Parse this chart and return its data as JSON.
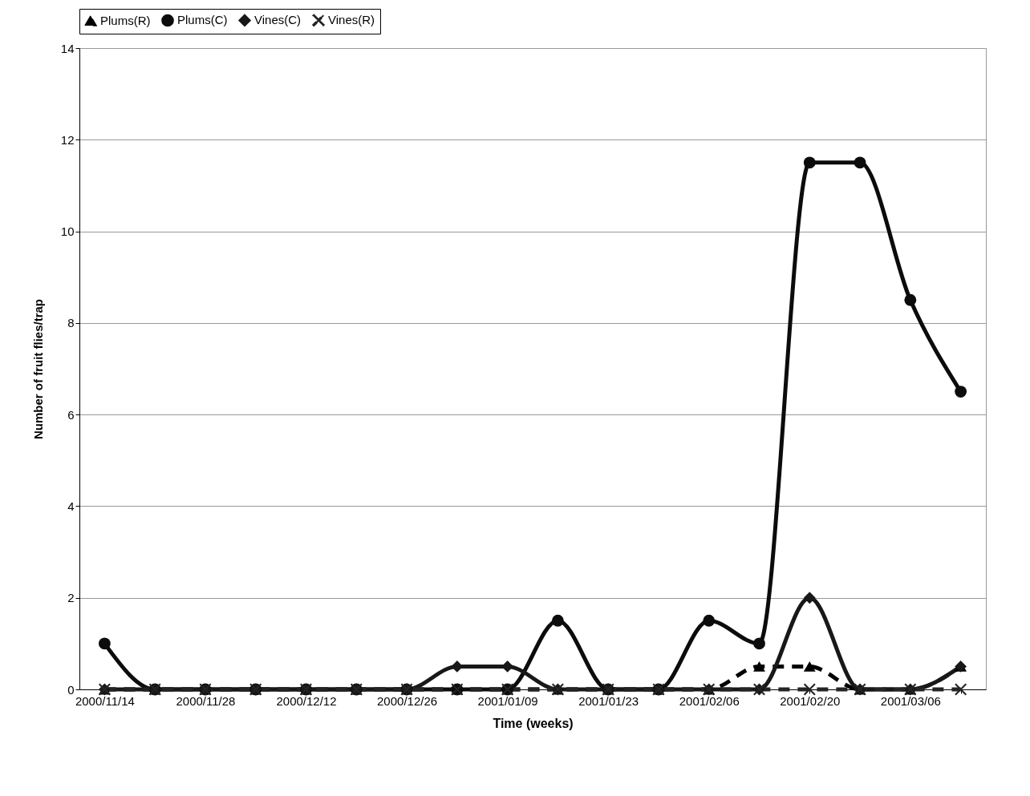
{
  "chart_data": {
    "type": "line",
    "xlabel": "Time (weeks)",
    "ylabel": "Number of fruit flies/trap",
    "categories": [
      "2000/11/14",
      null,
      "2000/11/28",
      null,
      "2000/12/12",
      null,
      "2000/12/26",
      null,
      "2001/01/09",
      null,
      "2001/01/23",
      null,
      "2001/02/06",
      null,
      "2001/02/20",
      null,
      "2001/03/06",
      null
    ],
    "series": [
      {
        "name": "Plums(R)",
        "color": "#000000",
        "marker": "triangle",
        "line_style": "dashed",
        "values": [
          0,
          0,
          0,
          0,
          0,
          0,
          0,
          0,
          0,
          0,
          0,
          0,
          0,
          0.5,
          0.5,
          0,
          0,
          0.5
        ]
      },
      {
        "name": "Plums(C)",
        "color": "#0c0c0c",
        "marker": "circle",
        "line_style": "solid",
        "values": [
          1,
          0,
          0,
          0,
          0,
          0,
          0,
          0,
          0,
          1.5,
          0,
          0,
          1.5,
          1,
          11.5,
          11.5,
          8.5,
          6.5
        ]
      },
      {
        "name": "Vines(C)",
        "color": "#181818",
        "marker": "diamond",
        "line_style": "solid",
        "values": [
          0,
          0,
          0,
          0,
          0,
          0,
          0,
          0.5,
          0.5,
          0,
          0,
          0,
          0,
          0,
          2,
          0,
          0,
          0.5
        ]
      },
      {
        "name": "Vines(R)",
        "color": "#242424",
        "marker": "cross",
        "line_style": "dashed",
        "values": [
          0,
          0,
          0,
          0,
          0,
          0,
          0,
          0,
          0,
          0,
          0,
          0,
          0,
          0,
          0,
          0,
          0,
          0
        ]
      }
    ],
    "ylim": [
      0,
      14
    ],
    "yticks": [
      0,
      2,
      4,
      6,
      8,
      10,
      12,
      14
    ],
    "grid": "y",
    "legend": "top"
  }
}
